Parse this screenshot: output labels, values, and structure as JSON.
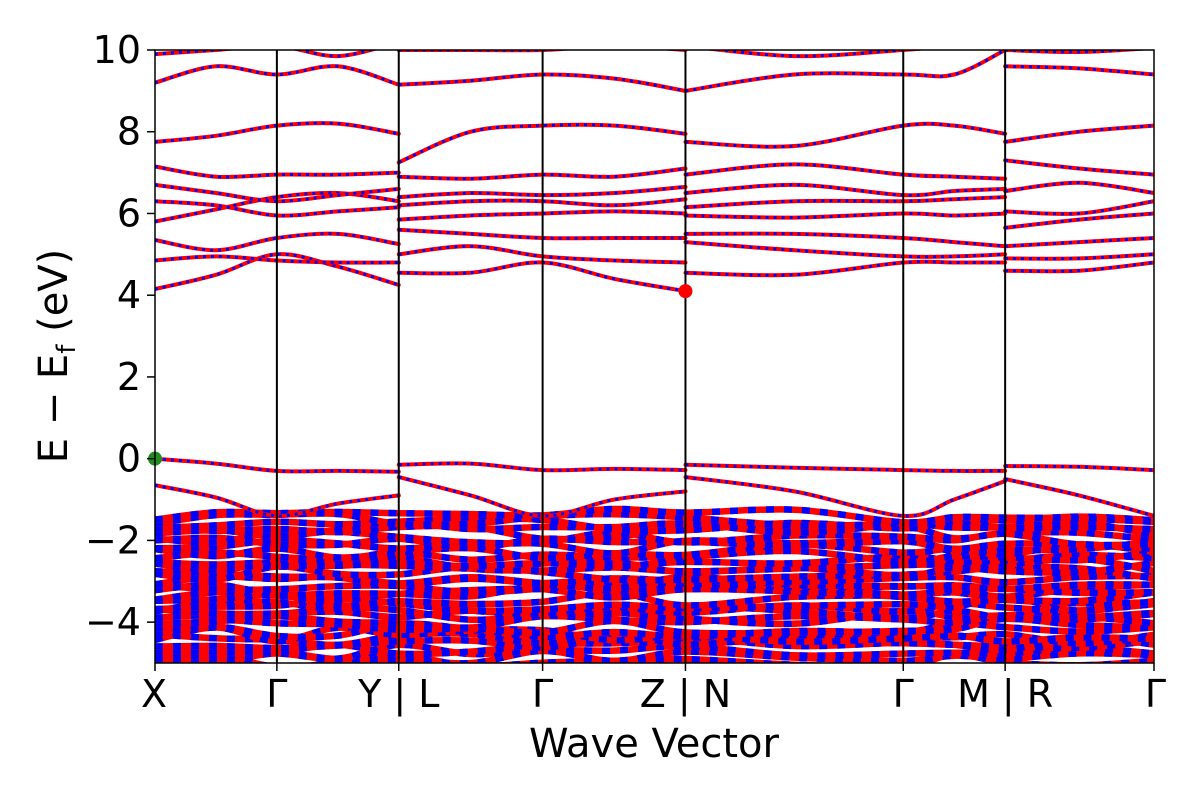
{
  "chart_data": {
    "type": "line",
    "title": "",
    "xlabel": "Wave Vector",
    "ylabel_main": "E − E",
    "ylabel_sub": "f",
    "ylabel_unit": " (eV)",
    "ylim": [
      -5,
      10
    ],
    "yticks": [
      -4,
      -2,
      0,
      2,
      4,
      6,
      8,
      10
    ],
    "ytick_labels": [
      "−4",
      "−2",
      "0",
      "2",
      "4",
      "6",
      "8",
      "10"
    ],
    "x_range": [
      0,
      1
    ],
    "kpoint_ticks": [
      {
        "x": 0.0,
        "label": "X"
      },
      {
        "x": 0.122,
        "label": "Γ"
      },
      {
        "x": 0.244,
        "label": "Y | L"
      },
      {
        "x": 0.388,
        "label": "Γ"
      },
      {
        "x": 0.531,
        "label": "Z | N"
      },
      {
        "x": 0.749,
        "label": "Γ"
      },
      {
        "x": 0.851,
        "label": "M | R"
      },
      {
        "x": 1.0,
        "label": "Γ"
      }
    ],
    "high_symmetry_lines": [
      0.122,
      0.244,
      0.388,
      0.531,
      0.749,
      0.851
    ],
    "special_points": [
      {
        "name": "VBM",
        "x": 0.0,
        "y": 0.0,
        "color": "#228B22"
      },
      {
        "name": "CBM",
        "x": 0.531,
        "y": 4.1,
        "color": "#FF0000"
      }
    ],
    "series_colors": {
      "up": "#FF0000",
      "down": "#0000FF"
    },
    "series": [
      {
        "x": [
          0.0,
          0.061,
          0.122,
          0.183,
          0.244
        ],
        "y": [
          0.0,
          -0.12,
          -0.3,
          -0.3,
          -0.32
        ]
      },
      {
        "x": [
          0.0,
          0.061,
          0.122,
          0.183,
          0.244
        ],
        "y": [
          -0.65,
          -0.95,
          -1.4,
          -1.1,
          -0.9
        ]
      },
      {
        "x": [
          0.244,
          0.316,
          0.388,
          0.46,
          0.531
        ],
        "y": [
          -0.15,
          -0.12,
          -0.28,
          -0.25,
          -0.28
        ]
      },
      {
        "x": [
          0.244,
          0.316,
          0.388,
          0.46,
          0.531
        ],
        "y": [
          -0.45,
          -0.9,
          -1.4,
          -1.0,
          -0.8
        ]
      },
      {
        "x": [
          0.531,
          0.64,
          0.749,
          0.8,
          0.851
        ],
        "y": [
          -0.15,
          -0.22,
          -0.28,
          -0.3,
          -0.3
        ]
      },
      {
        "x": [
          0.531,
          0.64,
          0.749,
          0.8,
          0.851
        ],
        "y": [
          -0.45,
          -0.8,
          -1.4,
          -1.0,
          -0.55
        ]
      },
      {
        "x": [
          0.851,
          0.925,
          1.0
        ],
        "y": [
          -0.18,
          -0.2,
          -0.28
        ]
      },
      {
        "x": [
          0.851,
          0.925,
          1.0
        ],
        "y": [
          -0.5,
          -0.9,
          -1.4
        ]
      },
      {
        "x": [
          0.0,
          0.061,
          0.122,
          0.183,
          0.244
        ],
        "y": [
          4.15,
          4.5,
          5.0,
          4.7,
          4.25
        ]
      },
      {
        "x": [
          0.0,
          0.061,
          0.122,
          0.183,
          0.244
        ],
        "y": [
          4.85,
          4.95,
          4.85,
          4.8,
          4.8
        ]
      },
      {
        "x": [
          0.0,
          0.061,
          0.122,
          0.183,
          0.244
        ],
        "y": [
          5.35,
          5.1,
          5.4,
          5.5,
          5.25
        ]
      },
      {
        "x": [
          0.0,
          0.061,
          0.122,
          0.183,
          0.244
        ],
        "y": [
          5.8,
          6.1,
          6.4,
          6.5,
          6.3
        ]
      },
      {
        "x": [
          0.0,
          0.061,
          0.122,
          0.183,
          0.244
        ],
        "y": [
          6.3,
          6.2,
          5.95,
          6.05,
          6.15
        ]
      },
      {
        "x": [
          0.0,
          0.061,
          0.122,
          0.183,
          0.244
        ],
        "y": [
          6.7,
          6.5,
          6.3,
          6.45,
          6.6
        ]
      },
      {
        "x": [
          0.0,
          0.061,
          0.122,
          0.183,
          0.244
        ],
        "y": [
          7.15,
          6.9,
          6.95,
          6.95,
          7.0
        ]
      },
      {
        "x": [
          0.0,
          0.061,
          0.122,
          0.183,
          0.244
        ],
        "y": [
          7.75,
          7.9,
          8.15,
          8.2,
          7.95
        ]
      },
      {
        "x": [
          0.0,
          0.061,
          0.122,
          0.183,
          0.244
        ],
        "y": [
          9.2,
          9.6,
          9.4,
          9.6,
          9.15
        ]
      },
      {
        "x": [
          0.0,
          0.061,
          0.122,
          0.183,
          0.244
        ],
        "y": [
          9.9,
          10.0,
          10.1,
          9.85,
          10.2
        ]
      },
      {
        "x": [
          0.244,
          0.316,
          0.388,
          0.46,
          0.531
        ],
        "y": [
          4.55,
          4.55,
          4.8,
          4.4,
          4.1
        ]
      },
      {
        "x": [
          0.244,
          0.316,
          0.388,
          0.46,
          0.531
        ],
        "y": [
          5.0,
          5.2,
          4.95,
          4.85,
          4.8
        ]
      },
      {
        "x": [
          0.244,
          0.316,
          0.388,
          0.46,
          0.531
        ],
        "y": [
          5.6,
          5.5,
          5.4,
          5.4,
          5.4
        ]
      },
      {
        "x": [
          0.244,
          0.316,
          0.388,
          0.46,
          0.531
        ],
        "y": [
          5.85,
          5.95,
          6.0,
          6.05,
          6.0
        ]
      },
      {
        "x": [
          0.244,
          0.316,
          0.388,
          0.46,
          0.531
        ],
        "y": [
          6.2,
          6.3,
          6.3,
          6.2,
          6.35
        ]
      },
      {
        "x": [
          0.244,
          0.316,
          0.388,
          0.46,
          0.531
        ],
        "y": [
          6.4,
          6.5,
          6.45,
          6.5,
          6.65
        ]
      },
      {
        "x": [
          0.244,
          0.316,
          0.388,
          0.46,
          0.531
        ],
        "y": [
          6.9,
          6.85,
          6.95,
          6.9,
          7.1
        ]
      },
      {
        "x": [
          0.244,
          0.316,
          0.388,
          0.46,
          0.531
        ],
        "y": [
          7.25,
          8.0,
          8.15,
          8.15,
          7.95
        ]
      },
      {
        "x": [
          0.244,
          0.316,
          0.388,
          0.46,
          0.531
        ],
        "y": [
          9.15,
          9.25,
          9.4,
          9.3,
          9.0
        ]
      },
      {
        "x": [
          0.244,
          0.316,
          0.388,
          0.46,
          0.531
        ],
        "y": [
          10.0,
          10.0,
          10.0,
          10.1,
          10.0
        ]
      },
      {
        "x": [
          0.531,
          0.64,
          0.749,
          0.8,
          0.851
        ],
        "y": [
          4.55,
          4.5,
          4.8,
          4.8,
          4.8
        ]
      },
      {
        "x": [
          0.531,
          0.64,
          0.749,
          0.8,
          0.851
        ],
        "y": [
          5.3,
          5.1,
          4.95,
          4.95,
          5.0
        ]
      },
      {
        "x": [
          0.531,
          0.64,
          0.749,
          0.8,
          0.851
        ],
        "y": [
          5.5,
          5.5,
          5.4,
          5.3,
          5.2
        ]
      },
      {
        "x": [
          0.531,
          0.64,
          0.749,
          0.8,
          0.851
        ],
        "y": [
          5.95,
          5.9,
          6.0,
          5.95,
          6.0
        ]
      },
      {
        "x": [
          0.531,
          0.64,
          0.749,
          0.8,
          0.851
        ],
        "y": [
          6.15,
          6.3,
          6.3,
          6.35,
          6.4
        ]
      },
      {
        "x": [
          0.531,
          0.64,
          0.749,
          0.8,
          0.851
        ],
        "y": [
          6.5,
          6.7,
          6.45,
          6.55,
          6.6
        ]
      },
      {
        "x": [
          0.531,
          0.64,
          0.749,
          0.8,
          0.851
        ],
        "y": [
          6.95,
          7.2,
          6.95,
          6.9,
          6.85
        ]
      },
      {
        "x": [
          0.531,
          0.64,
          0.749,
          0.8,
          0.851
        ],
        "y": [
          7.75,
          7.65,
          8.15,
          8.15,
          7.95
        ]
      },
      {
        "x": [
          0.531,
          0.64,
          0.749,
          0.8,
          0.851
        ],
        "y": [
          9.0,
          9.4,
          9.4,
          9.4,
          10.0
        ]
      },
      {
        "x": [
          0.531,
          0.64,
          0.749,
          0.8,
          0.851
        ],
        "y": [
          10.1,
          9.85,
          10.0,
          10.1,
          10.05
        ]
      },
      {
        "x": [
          0.851,
          0.925,
          1.0
        ],
        "y": [
          4.6,
          4.6,
          4.8
        ]
      },
      {
        "x": [
          0.851,
          0.925,
          1.0
        ],
        "y": [
          4.9,
          4.9,
          5.0
        ]
      },
      {
        "x": [
          0.851,
          0.925,
          1.0
        ],
        "y": [
          5.2,
          5.3,
          5.4
        ]
      },
      {
        "x": [
          0.851,
          0.925,
          1.0
        ],
        "y": [
          5.65,
          5.85,
          6.0
        ]
      },
      {
        "x": [
          0.851,
          0.925,
          1.0
        ],
        "y": [
          6.05,
          6.0,
          6.3
        ]
      },
      {
        "x": [
          0.851,
          0.925,
          1.0
        ],
        "y": [
          6.55,
          6.75,
          6.5
        ]
      },
      {
        "x": [
          0.851,
          0.925,
          1.0
        ],
        "y": [
          7.3,
          7.1,
          6.95
        ]
      },
      {
        "x": [
          0.851,
          0.925,
          1.0
        ],
        "y": [
          7.75,
          8.0,
          8.15
        ]
      },
      {
        "x": [
          0.851,
          0.925,
          1.0
        ],
        "y": [
          9.6,
          9.55,
          9.4
        ]
      },
      {
        "x": [
          0.851,
          0.925,
          1.0
        ],
        "y": [
          10.0,
          9.95,
          10.05
        ]
      }
    ],
    "dense_valence_region": {
      "y_range": [
        -5.0,
        -1.35
      ],
      "band_count": 34
    }
  }
}
